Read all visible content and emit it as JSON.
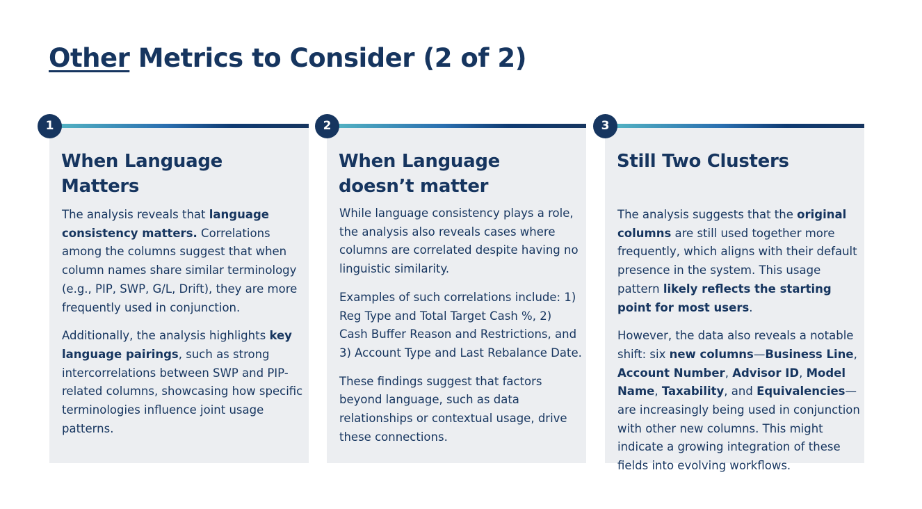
{
  "slide": {
    "title_underlined": "Other",
    "title_rest": " Metrics to Consider (2 of 2)"
  },
  "cards": [
    {
      "number": "1",
      "heading": "When Language Matters",
      "paragraphs": [
        [
          {
            "t": "The analysis reveals that ",
            "b": false
          },
          {
            "t": "language consistency matters.",
            "b": true
          },
          {
            "t": " Correlations among the columns suggest that when column names share similar terminology (e.g., PIP, SWP, G/L, Drift), they are more frequently used in conjunction.",
            "b": false
          }
        ],
        [
          {
            "t": "Additionally, the analysis highlights ",
            "b": false
          },
          {
            "t": "key language pairings",
            "b": true
          },
          {
            "t": ", such as strong intercorrelations between SWP and PIP-related columns, showcasing how specific terminologies influence joint usage patterns.",
            "b": false
          }
        ]
      ]
    },
    {
      "number": "2",
      "heading": "When Language doesn’t matter",
      "paragraphs": [
        [
          {
            "t": "While language consistency plays a role, the analysis also reveals cases where columns are correlated despite having no linguistic similarity.",
            "b": false
          }
        ],
        [
          {
            "t": "Examples of such correlations include: 1) Reg Type and Total Target Cash %, 2) Cash Buffer Reason and Restrictions, and 3) Account Type and Last Rebalance Date.",
            "b": false
          }
        ],
        [
          {
            "t": "These findings suggest that factors beyond language, such as data relationships or contextual usage, drive these connections.",
            "b": false
          }
        ]
      ]
    },
    {
      "number": "3",
      "heading": "Still Two Clusters",
      "paragraphs": [
        [
          {
            "t": "The analysis suggests that the ",
            "b": false
          },
          {
            "t": "original columns",
            "b": true
          },
          {
            "t": " are still used together more frequently, which aligns with their default presence in the system. This usage pattern ",
            "b": false
          },
          {
            "t": "likely reflects the starting point for most users",
            "b": true
          },
          {
            "t": ".",
            "b": false
          }
        ],
        [
          {
            "t": "However, the data also reveals a notable shift: six ",
            "b": false
          },
          {
            "t": "new columns",
            "b": true
          },
          {
            "t": "—",
            "b": false
          },
          {
            "t": "Business Line",
            "b": true
          },
          {
            "t": ", ",
            "b": false
          },
          {
            "t": "Account Number",
            "b": true
          },
          {
            "t": ", ",
            "b": false
          },
          {
            "t": "Advisor ID",
            "b": true
          },
          {
            "t": ", ",
            "b": false
          },
          {
            "t": "Model Name",
            "b": true
          },
          {
            "t": ", ",
            "b": false
          },
          {
            "t": "Taxability",
            "b": true
          },
          {
            "t": ", and ",
            "b": false
          },
          {
            "t": "Equivalencies",
            "b": true
          },
          {
            "t": "—are increasingly being used in conjunction with other new columns. This might indicate a growing integration of these fields into evolving workflows.",
            "b": false
          }
        ]
      ]
    }
  ]
}
